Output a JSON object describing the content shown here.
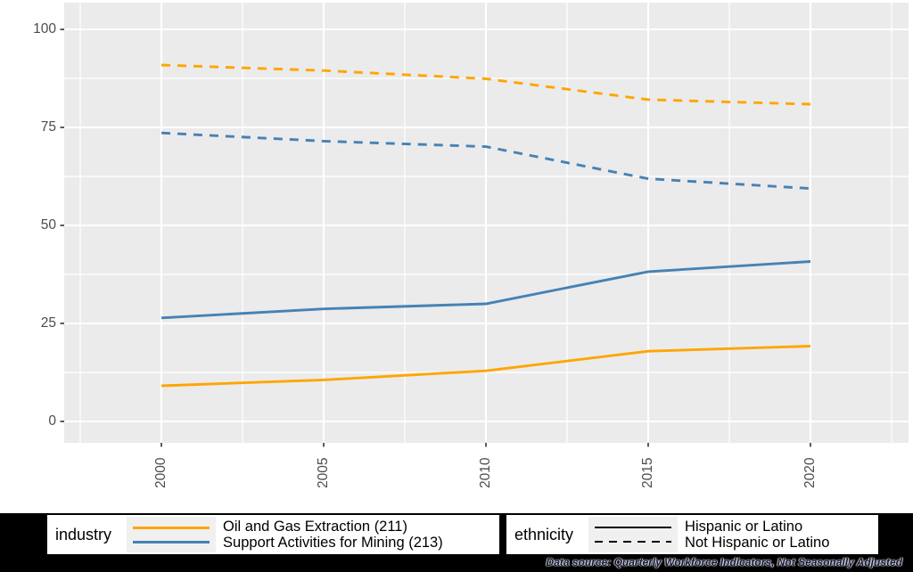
{
  "chart_data": {
    "type": "line",
    "x": [
      2000,
      2005,
      2010,
      2015,
      2020
    ],
    "x_tick_labels": [
      "2000",
      "2005",
      "2010",
      "2015",
      "2020"
    ],
    "y_tick_labels": [
      "100",
      "75",
      "50",
      "25",
      "0"
    ],
    "y_ticks": [
      100,
      75,
      50,
      25,
      0
    ],
    "ylim": [
      0,
      100
    ],
    "xlabel": "",
    "ylabel": "",
    "grid": "on",
    "legend_position": "bottom",
    "panel_bg": "#EBEBEB",
    "grid_color": "#FFFFFF",
    "axis_text_color": "#4D4D4D",
    "tick_color": "#333333",
    "series": [
      {
        "name": "Oil and Gas Extraction (211) - Hispanic or Latino",
        "color": "#FFA500",
        "dash": "solid",
        "values": [
          9.1,
          10.6,
          12.9,
          17.9,
          19.2
        ]
      },
      {
        "name": "Oil and Gas Extraction (211) - Not Hispanic or Latino",
        "color": "#FFA500",
        "dash": "dashed",
        "values": [
          90.9,
          89.5,
          87.4,
          82.1,
          80.9
        ]
      },
      {
        "name": "Support Activities for Mining (213) - Hispanic or Latino",
        "color": "#4682B4",
        "dash": "solid",
        "values": [
          26.4,
          28.7,
          30.0,
          38.2,
          40.8
        ]
      },
      {
        "name": "Support Activities for Mining (213) - Not Hispanic or Latino",
        "color": "#4682B4",
        "dash": "dashed",
        "values": [
          73.6,
          71.5,
          70.1,
          61.9,
          59.4
        ]
      }
    ]
  },
  "legend": {
    "industry": {
      "title": "industry",
      "items": [
        {
          "label": "Oil and Gas Extraction (211)",
          "color": "#FFA500"
        },
        {
          "label": "Support Activities for Mining (213)",
          "color": "#4682B4"
        }
      ]
    },
    "ethnicity": {
      "title": "ethnicity",
      "items": [
        {
          "label": "Hispanic or Latino",
          "dash": "solid"
        },
        {
          "label": "Not Hispanic or Latino",
          "dash": "dashed"
        }
      ]
    }
  },
  "caption": {
    "text": "Data source: Quarterly Workforce Indicators, Not Seasonally Adjusted"
  }
}
